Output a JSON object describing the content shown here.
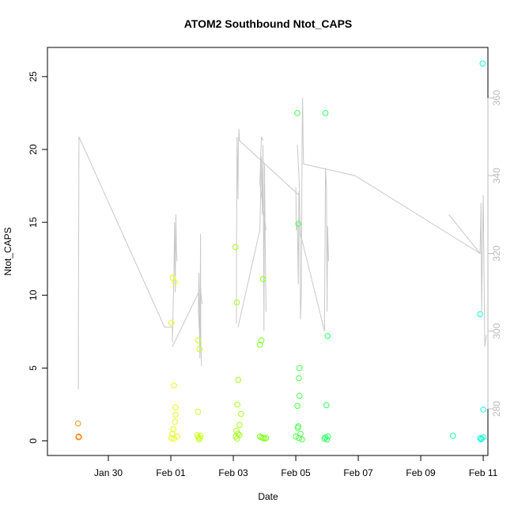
{
  "chart_data": {
    "type": "scatter",
    "title": "ATOM2 Southbound Ntot_CAPS",
    "xlabel": "Date",
    "ylabel": "Ntot_CAPS",
    "x_unit": "days since Jan 30",
    "xlim": [
      -1.95,
      12.15
    ],
    "ylim": [
      -1.0,
      27.0
    ],
    "x_ticks": [
      {
        "value": 0,
        "label": "Jan 30"
      },
      {
        "value": 2,
        "label": "Feb 01"
      },
      {
        "value": 4,
        "label": "Feb 03"
      },
      {
        "value": 6,
        "label": "Feb 05"
      },
      {
        "value": 8,
        "label": "Feb 07"
      },
      {
        "value": 10,
        "label": "Feb 09"
      },
      {
        "value": 12,
        "label": "Feb 11"
      }
    ],
    "y_ticks": [
      0,
      5,
      10,
      15,
      20,
      25
    ],
    "y2_ticks": [
      280,
      300,
      320,
      340,
      360
    ],
    "y2_range": [
      268.0,
      373.0
    ],
    "point_color_scale": "rainbow by date: orange to yellow to green to cyan",
    "points": [
      {
        "x": -0.97,
        "y": 1.2,
        "color": "#ff8c1a"
      },
      {
        "x": -0.95,
        "y": 0.3,
        "color": "#ff8c1a"
      },
      {
        "x": -0.96,
        "y": 0.25,
        "color": "#ff8c1a"
      },
      {
        "x": -0.94,
        "y": 0.28,
        "color": "#ff8c1a"
      },
      {
        "x": 2.02,
        "y": 8.1,
        "color": "#e6ff1a"
      },
      {
        "x": 2.06,
        "y": 11.2,
        "color": "#e6ff1a"
      },
      {
        "x": 2.12,
        "y": 10.9,
        "color": "#e6ff1a"
      },
      {
        "x": 2.1,
        "y": 3.8,
        "color": "#e6ff1a"
      },
      {
        "x": 2.15,
        "y": 2.3,
        "color": "#e6ff1a"
      },
      {
        "x": 2.15,
        "y": 1.8,
        "color": "#e6ff1a"
      },
      {
        "x": 2.13,
        "y": 1.3,
        "color": "#e6ff1a"
      },
      {
        "x": 2.08,
        "y": 0.8,
        "color": "#e6ff1a"
      },
      {
        "x": 2.05,
        "y": 0.5,
        "color": "#e6ff1a"
      },
      {
        "x": 2.02,
        "y": 0.2,
        "color": "#e6ff1a"
      },
      {
        "x": 2.1,
        "y": 0.15,
        "color": "#e6ff1a"
      },
      {
        "x": 2.2,
        "y": 0.3,
        "color": "#e6ff1a"
      },
      {
        "x": 2.88,
        "y": 6.9,
        "color": "#ccff1a"
      },
      {
        "x": 2.92,
        "y": 6.3,
        "color": "#ccff1a"
      },
      {
        "x": 2.87,
        "y": 2.0,
        "color": "#ccff1a"
      },
      {
        "x": 2.85,
        "y": 0.4,
        "color": "#ccff1a"
      },
      {
        "x": 2.88,
        "y": 0.25,
        "color": "#ccff1a"
      },
      {
        "x": 2.93,
        "y": 0.2,
        "color": "#ccff1a"
      },
      {
        "x": 2.95,
        "y": 0.35,
        "color": "#ccff1a"
      },
      {
        "x": 2.9,
        "y": 0.1,
        "color": "#ccff1a"
      },
      {
        "x": 4.07,
        "y": 13.3,
        "color": "#a6ff1a"
      },
      {
        "x": 4.11,
        "y": 9.5,
        "color": "#a6ff1a"
      },
      {
        "x": 4.16,
        "y": 4.2,
        "color": "#a6ff1a"
      },
      {
        "x": 4.13,
        "y": 2.5,
        "color": "#a6ff1a"
      },
      {
        "x": 4.25,
        "y": 1.85,
        "color": "#a6ff1a"
      },
      {
        "x": 4.2,
        "y": 1.1,
        "color": "#a6ff1a"
      },
      {
        "x": 4.1,
        "y": 0.7,
        "color": "#a6ff1a"
      },
      {
        "x": 4.15,
        "y": 0.5,
        "color": "#a6ff1a"
      },
      {
        "x": 4.08,
        "y": 0.3,
        "color": "#a6ff1a"
      },
      {
        "x": 4.12,
        "y": 0.15,
        "color": "#a6ff1a"
      },
      {
        "x": 4.2,
        "y": 0.4,
        "color": "#a6ff1a"
      },
      {
        "x": 4.85,
        "y": 6.6,
        "color": "#80ff1a"
      },
      {
        "x": 4.9,
        "y": 6.9,
        "color": "#80ff1a"
      },
      {
        "x": 4.95,
        "y": 11.1,
        "color": "#80ff1a"
      },
      {
        "x": 4.85,
        "y": 0.3,
        "color": "#80ff1a"
      },
      {
        "x": 4.9,
        "y": 0.25,
        "color": "#80ff1a"
      },
      {
        "x": 4.95,
        "y": 0.2,
        "color": "#80ff1a"
      },
      {
        "x": 5.0,
        "y": 0.15,
        "color": "#80ff1a"
      },
      {
        "x": 5.05,
        "y": 0.2,
        "color": "#80ff1a"
      },
      {
        "x": 6.05,
        "y": 22.5,
        "color": "#4dff4d"
      },
      {
        "x": 6.08,
        "y": 14.9,
        "color": "#4dff4d"
      },
      {
        "x": 6.12,
        "y": 5.0,
        "color": "#4dff4d"
      },
      {
        "x": 6.1,
        "y": 4.3,
        "color": "#4dff4d"
      },
      {
        "x": 6.12,
        "y": 3.1,
        "color": "#4dff4d"
      },
      {
        "x": 6.05,
        "y": 2.4,
        "color": "#4dff4d"
      },
      {
        "x": 6.08,
        "y": 1.0,
        "color": "#4dff4d"
      },
      {
        "x": 6.06,
        "y": 0.9,
        "color": "#4dff4d"
      },
      {
        "x": 6.0,
        "y": 0.3,
        "color": "#4dff4d"
      },
      {
        "x": 6.1,
        "y": 0.2,
        "color": "#4dff4d"
      },
      {
        "x": 6.15,
        "y": 0.5,
        "color": "#4dff4d"
      },
      {
        "x": 6.2,
        "y": 0.1,
        "color": "#4dff4d"
      },
      {
        "x": 6.95,
        "y": 22.5,
        "color": "#33ff66"
      },
      {
        "x": 7.02,
        "y": 7.2,
        "color": "#33ff66"
      },
      {
        "x": 6.98,
        "y": 2.45,
        "color": "#33ff66"
      },
      {
        "x": 6.95,
        "y": 0.25,
        "color": "#33ff66"
      },
      {
        "x": 7.0,
        "y": 0.1,
        "color": "#33ff66"
      },
      {
        "x": 6.92,
        "y": 0.15,
        "color": "#33ff66"
      },
      {
        "x": 7.03,
        "y": 0.3,
        "color": "#33ff66"
      },
      {
        "x": 11.03,
        "y": 0.35,
        "color": "#1affb3"
      },
      {
        "x": 11.9,
        "y": 8.7,
        "color": "#1affd9"
      },
      {
        "x": 11.98,
        "y": 25.9,
        "color": "#1affd9"
      },
      {
        "x": 12.0,
        "y": 2.15,
        "color": "#1affd9"
      },
      {
        "x": 11.9,
        "y": 0.2,
        "color": "#1affd9"
      },
      {
        "x": 11.95,
        "y": 0.15,
        "color": "#1affd9"
      },
      {
        "x": 12.0,
        "y": 0.25,
        "color": "#1affd9"
      },
      {
        "x": 11.93,
        "y": 0.1,
        "color": "#1affd9"
      }
    ],
    "line_series": {
      "name": "secondary axis trace",
      "color": "#c8c8c8",
      "segments": [
        [
          [
            -0.96,
            285
          ],
          [
            -0.96,
            299
          ],
          [
            -0.94,
            350
          ],
          [
            1.8,
            301
          ],
          [
            2.05,
            301
          ],
          [
            2.05,
            297
          ],
          [
            2.08,
            308
          ],
          [
            2.1,
            316
          ],
          [
            2.12,
            328
          ],
          [
            2.14,
            310
          ],
          [
            2.16,
            330
          ],
          [
            2.18,
            321
          ],
          [
            2.2,
            318
          ]
        ],
        [
          [
            2.05,
            296
          ],
          [
            2.95,
            311
          ],
          [
            3.0,
            307
          ]
        ],
        [
          [
            2.92,
            299
          ],
          [
            2.88,
            305
          ],
          [
            2.9,
            315
          ],
          [
            2.93,
            293
          ],
          [
            2.95,
            325
          ],
          [
            2.96,
            296
          ],
          [
            2.98,
            291
          ]
        ],
        [
          [
            4.1,
            302
          ],
          [
            4.1,
            318
          ],
          [
            4.12,
            350
          ],
          [
            4.15,
            334
          ],
          [
            4.16,
            347
          ],
          [
            4.18,
            352
          ],
          [
            4.2,
            349
          ],
          [
            6.1,
            335
          ]
        ],
        [
          [
            4.15,
            301
          ],
          [
            4.85,
            326
          ],
          [
            4.9,
            345
          ],
          [
            4.93,
            330
          ],
          [
            4.95,
            348
          ],
          [
            4.98,
            300
          ],
          [
            5.0,
            343
          ],
          [
            5.02,
            324
          ],
          [
            5.05,
            305
          ]
        ],
        [
          [
            5.05,
            326
          ],
          [
            4.85,
            338
          ],
          [
            4.9,
            350
          ],
          [
            4.95,
            349
          ]
        ],
        [
          [
            6.05,
            348
          ],
          [
            6.1,
            340
          ],
          [
            6.12,
            336
          ],
          [
            6.15,
            303
          ],
          [
            6.18,
            310
          ],
          [
            6.2,
            349
          ],
          [
            6.22,
            360
          ],
          [
            6.24,
            346
          ],
          [
            6.25,
            343
          ],
          [
            7.9,
            340
          ],
          [
            11.9,
            320
          ]
        ],
        [
          [
            6.0,
            337
          ],
          [
            6.02,
            326
          ],
          [
            6.05,
            328
          ],
          [
            6.08,
            312
          ],
          [
            6.1,
            336
          ],
          [
            6.15,
            325
          ],
          [
            6.92,
            300
          ],
          [
            6.95,
            342
          ],
          [
            6.98,
            337
          ],
          [
            7.0,
            305
          ],
          [
            7.02,
            327
          ],
          [
            7.05,
            318
          ]
        ],
        [
          [
            10.9,
            330
          ],
          [
            11.9,
            320
          ],
          [
            11.93,
            333
          ],
          [
            11.95,
            305
          ],
          [
            11.98,
            325
          ],
          [
            12.0,
            335
          ],
          [
            12.05,
            296
          ],
          [
            12.1,
            299
          ]
        ]
      ]
    }
  }
}
